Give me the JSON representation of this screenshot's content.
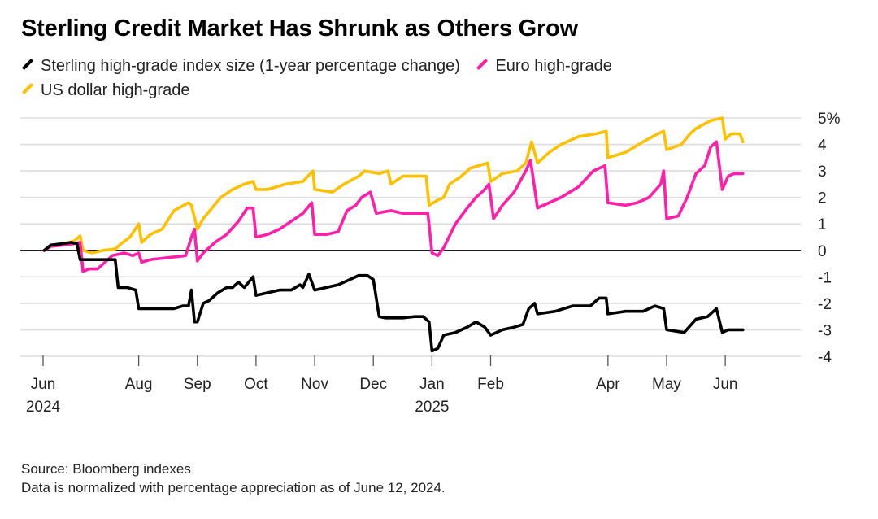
{
  "title": "Sterling Credit Market Has Shrunk as Others Grow",
  "legend": [
    {
      "label": "Sterling high-grade index size (1-year percentage change)",
      "color": "#000000"
    },
    {
      "label": "Euro high-grade",
      "color": "#ff1fa8"
    },
    {
      "label": "US dollar high-grade",
      "color": "#ffc000"
    }
  ],
  "footer": {
    "source": "Source: Bloomberg indexes",
    "note": "Data is normalized with percentage appreciation as of June 12, 2024."
  },
  "chart_data": {
    "type": "line",
    "x_unit": "months since June 1, 2024",
    "xlim": [
      0.0,
      12.6
    ],
    "ylim": [
      -4,
      5
    ],
    "grid": true,
    "y_ticks": [
      {
        "v": 5,
        "label": "5%"
      },
      {
        "v": 4,
        "label": "4"
      },
      {
        "v": 3,
        "label": "3"
      },
      {
        "v": 2,
        "label": "2"
      },
      {
        "v": 1,
        "label": "1"
      },
      {
        "v": 0,
        "label": "0"
      },
      {
        "v": -1,
        "label": "-1"
      },
      {
        "v": -2,
        "label": "-2"
      },
      {
        "v": -3,
        "label": "-3"
      },
      {
        "v": -4,
        "label": "-4"
      }
    ],
    "x_ticks": [
      {
        "x": 0.37,
        "label": "Jun",
        "label2": "2024"
      },
      {
        "x": 2.0,
        "label": "Aug",
        "label2": ""
      },
      {
        "x": 3.0,
        "label": "Sep",
        "label2": ""
      },
      {
        "x": 4.0,
        "label": "Oct",
        "label2": ""
      },
      {
        "x": 5.0,
        "label": "Nov",
        "label2": ""
      },
      {
        "x": 6.0,
        "label": "Dec",
        "label2": ""
      },
      {
        "x": 7.0,
        "label": "Jan",
        "label2": "2025"
      },
      {
        "x": 8.0,
        "label": "Feb",
        "label2": ""
      },
      {
        "x": 10.0,
        "label": "Apr",
        "label2": ""
      },
      {
        "x": 11.0,
        "label": "May",
        "label2": ""
      },
      {
        "x": 12.0,
        "label": "Jun",
        "label2": ""
      }
    ],
    "series": [
      {
        "name": "US dollar high-grade",
        "color": "#ffc000",
        "points": [
          [
            0.39,
            0.0
          ],
          [
            0.5,
            0.15
          ],
          [
            0.7,
            0.25
          ],
          [
            0.9,
            0.35
          ],
          [
            1.0,
            0.55
          ],
          [
            1.05,
            0.0
          ],
          [
            1.2,
            -0.1
          ],
          [
            1.4,
            0.0
          ],
          [
            1.6,
            0.05
          ],
          [
            1.7,
            0.25
          ],
          [
            1.85,
            0.5
          ],
          [
            2.0,
            1.0
          ],
          [
            2.05,
            0.3
          ],
          [
            2.2,
            0.6
          ],
          [
            2.4,
            0.8
          ],
          [
            2.6,
            1.5
          ],
          [
            2.85,
            1.8
          ],
          [
            2.9,
            1.7
          ],
          [
            3.0,
            0.8
          ],
          [
            3.1,
            1.2
          ],
          [
            3.25,
            1.6
          ],
          [
            3.4,
            2.0
          ],
          [
            3.6,
            2.3
          ],
          [
            3.8,
            2.5
          ],
          [
            3.95,
            2.6
          ],
          [
            4.0,
            2.3
          ],
          [
            4.2,
            2.3
          ],
          [
            4.5,
            2.5
          ],
          [
            4.8,
            2.6
          ],
          [
            4.97,
            3.0
          ],
          [
            5.0,
            2.3
          ],
          [
            5.3,
            2.2
          ],
          [
            5.5,
            2.5
          ],
          [
            5.75,
            2.8
          ],
          [
            5.85,
            3.0
          ],
          [
            6.1,
            2.9
          ],
          [
            6.25,
            3.0
          ],
          [
            6.3,
            2.5
          ],
          [
            6.5,
            2.8
          ],
          [
            6.7,
            2.8
          ],
          [
            6.9,
            2.8
          ],
          [
            6.95,
            1.7
          ],
          [
            7.1,
            1.9
          ],
          [
            7.2,
            2.0
          ],
          [
            7.3,
            2.5
          ],
          [
            7.5,
            2.8
          ],
          [
            7.65,
            3.1
          ],
          [
            7.8,
            3.2
          ],
          [
            7.95,
            3.3
          ],
          [
            8.0,
            2.6
          ],
          [
            8.2,
            2.9
          ],
          [
            8.45,
            3.0
          ],
          [
            8.6,
            3.3
          ],
          [
            8.7,
            4.1
          ],
          [
            8.8,
            3.3
          ],
          [
            9.0,
            3.7
          ],
          [
            9.2,
            4.0
          ],
          [
            9.5,
            4.3
          ],
          [
            9.8,
            4.4
          ],
          [
            9.97,
            4.5
          ],
          [
            10.0,
            3.5
          ],
          [
            10.3,
            3.7
          ],
          [
            10.6,
            4.1
          ],
          [
            10.85,
            4.4
          ],
          [
            10.95,
            4.5
          ],
          [
            11.0,
            3.8
          ],
          [
            11.25,
            4.0
          ],
          [
            11.4,
            4.4
          ],
          [
            11.5,
            4.6
          ],
          [
            11.75,
            4.9
          ],
          [
            11.95,
            5.0
          ],
          [
            12.0,
            4.2
          ],
          [
            12.1,
            4.4
          ],
          [
            12.25,
            4.4
          ],
          [
            12.3,
            4.1
          ]
        ]
      },
      {
        "name": "Euro high-grade",
        "color": "#ff1fa8",
        "points": [
          [
            0.39,
            0.0
          ],
          [
            0.5,
            0.15
          ],
          [
            0.7,
            0.2
          ],
          [
            0.9,
            0.25
          ],
          [
            1.0,
            0.3
          ],
          [
            1.05,
            -0.8
          ],
          [
            1.15,
            -0.7
          ],
          [
            1.3,
            -0.7
          ],
          [
            1.4,
            -0.5
          ],
          [
            1.55,
            -0.2
          ],
          [
            1.75,
            -0.1
          ],
          [
            1.9,
            -0.2
          ],
          [
            2.0,
            -0.1
          ],
          [
            2.05,
            -0.45
          ],
          [
            2.2,
            -0.35
          ],
          [
            2.4,
            -0.3
          ],
          [
            2.6,
            -0.25
          ],
          [
            2.8,
            -0.2
          ],
          [
            2.9,
            0.5
          ],
          [
            2.95,
            0.8
          ],
          [
            3.0,
            -0.4
          ],
          [
            3.1,
            -0.1
          ],
          [
            3.3,
            0.3
          ],
          [
            3.5,
            0.6
          ],
          [
            3.7,
            1.1
          ],
          [
            3.85,
            1.6
          ],
          [
            3.95,
            1.6
          ],
          [
            4.0,
            0.5
          ],
          [
            4.2,
            0.6
          ],
          [
            4.4,
            0.8
          ],
          [
            4.6,
            1.1
          ],
          [
            4.8,
            1.4
          ],
          [
            4.95,
            1.8
          ],
          [
            5.0,
            0.6
          ],
          [
            5.2,
            0.6
          ],
          [
            5.4,
            0.7
          ],
          [
            5.55,
            1.5
          ],
          [
            5.7,
            1.7
          ],
          [
            5.8,
            2.0
          ],
          [
            5.95,
            2.2
          ],
          [
            6.05,
            1.4
          ],
          [
            6.3,
            1.5
          ],
          [
            6.5,
            1.4
          ],
          [
            6.7,
            1.4
          ],
          [
            6.93,
            1.4
          ],
          [
            7.0,
            -0.1
          ],
          [
            7.1,
            -0.2
          ],
          [
            7.2,
            0.1
          ],
          [
            7.4,
            1.0
          ],
          [
            7.6,
            1.6
          ],
          [
            7.75,
            2.0
          ],
          [
            7.9,
            2.3
          ],
          [
            7.97,
            2.5
          ],
          [
            8.05,
            1.2
          ],
          [
            8.2,
            1.7
          ],
          [
            8.4,
            2.2
          ],
          [
            8.6,
            3.0
          ],
          [
            8.68,
            3.4
          ],
          [
            8.8,
            1.6
          ],
          [
            9.0,
            1.8
          ],
          [
            9.2,
            2.0
          ],
          [
            9.5,
            2.4
          ],
          [
            9.75,
            3.0
          ],
          [
            9.95,
            3.2
          ],
          [
            10.0,
            1.8
          ],
          [
            10.3,
            1.7
          ],
          [
            10.5,
            1.8
          ],
          [
            10.7,
            2.0
          ],
          [
            10.9,
            2.5
          ],
          [
            10.95,
            3.0
          ],
          [
            11.0,
            1.2
          ],
          [
            11.2,
            1.3
          ],
          [
            11.35,
            2.0
          ],
          [
            11.5,
            2.9
          ],
          [
            11.65,
            3.2
          ],
          [
            11.75,
            3.9
          ],
          [
            11.85,
            4.1
          ],
          [
            11.95,
            2.3
          ],
          [
            12.05,
            2.8
          ],
          [
            12.15,
            2.9
          ],
          [
            12.3,
            2.9
          ]
        ]
      },
      {
        "name": "Sterling high-grade index size (1-year percentage change)",
        "color": "#000000",
        "points": [
          [
            0.39,
            0.0
          ],
          [
            0.5,
            0.2
          ],
          [
            0.7,
            0.25
          ],
          [
            0.85,
            0.3
          ],
          [
            0.95,
            0.25
          ],
          [
            1.0,
            -0.35
          ],
          [
            1.3,
            -0.35
          ],
          [
            1.6,
            -0.35
          ],
          [
            1.65,
            -1.4
          ],
          [
            1.8,
            -1.4
          ],
          [
            1.95,
            -1.5
          ],
          [
            2.0,
            -2.2
          ],
          [
            2.2,
            -2.2
          ],
          [
            2.4,
            -2.2
          ],
          [
            2.6,
            -2.2
          ],
          [
            2.75,
            -2.1
          ],
          [
            2.85,
            -2.1
          ],
          [
            2.9,
            -1.5
          ],
          [
            2.95,
            -2.7
          ],
          [
            3.0,
            -2.7
          ],
          [
            3.1,
            -2.0
          ],
          [
            3.2,
            -1.9
          ],
          [
            3.35,
            -1.6
          ],
          [
            3.5,
            -1.4
          ],
          [
            3.6,
            -1.4
          ],
          [
            3.7,
            -1.2
          ],
          [
            3.8,
            -1.4
          ],
          [
            3.95,
            -1.0
          ],
          [
            4.0,
            -1.7
          ],
          [
            4.2,
            -1.6
          ],
          [
            4.4,
            -1.5
          ],
          [
            4.6,
            -1.5
          ],
          [
            4.75,
            -1.3
          ],
          [
            4.8,
            -1.4
          ],
          [
            4.9,
            -0.9
          ],
          [
            5.0,
            -1.5
          ],
          [
            5.2,
            -1.4
          ],
          [
            5.4,
            -1.3
          ],
          [
            5.6,
            -1.1
          ],
          [
            5.75,
            -0.95
          ],
          [
            5.9,
            -0.95
          ],
          [
            6.0,
            -1.1
          ],
          [
            6.1,
            -2.5
          ],
          [
            6.2,
            -2.55
          ],
          [
            6.5,
            -2.55
          ],
          [
            6.7,
            -2.5
          ],
          [
            6.85,
            -2.5
          ],
          [
            6.95,
            -2.7
          ],
          [
            7.0,
            -3.8
          ],
          [
            7.1,
            -3.7
          ],
          [
            7.2,
            -3.2
          ],
          [
            7.4,
            -3.1
          ],
          [
            7.6,
            -2.9
          ],
          [
            7.75,
            -2.7
          ],
          [
            7.9,
            -2.9
          ],
          [
            8.0,
            -3.2
          ],
          [
            8.2,
            -3.0
          ],
          [
            8.4,
            -2.9
          ],
          [
            8.55,
            -2.8
          ],
          [
            8.65,
            -2.2
          ],
          [
            8.75,
            -2.0
          ],
          [
            8.8,
            -2.4
          ],
          [
            9.1,
            -2.3
          ],
          [
            9.4,
            -2.1
          ],
          [
            9.7,
            -2.1
          ],
          [
            9.85,
            -1.8
          ],
          [
            9.97,
            -1.8
          ],
          [
            10.0,
            -2.4
          ],
          [
            10.3,
            -2.3
          ],
          [
            10.6,
            -2.3
          ],
          [
            10.8,
            -2.1
          ],
          [
            10.95,
            -2.2
          ],
          [
            11.0,
            -3.0
          ],
          [
            11.3,
            -3.1
          ],
          [
            11.5,
            -2.6
          ],
          [
            11.7,
            -2.5
          ],
          [
            11.85,
            -2.2
          ],
          [
            11.95,
            -3.1
          ],
          [
            12.05,
            -3.0
          ],
          [
            12.3,
            -3.0
          ]
        ]
      }
    ]
  }
}
